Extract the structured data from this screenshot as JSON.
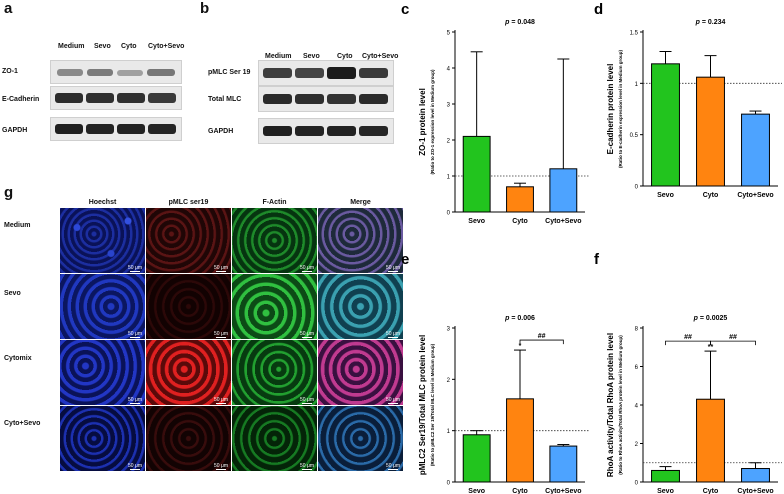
{
  "panels": {
    "a": {
      "letter": "a",
      "columns": [
        "Medium",
        "Sevo",
        "Cyto",
        "Cyto+Sevo"
      ],
      "rows": [
        "ZO-1",
        "E-Cadherin",
        "GAPDH"
      ]
    },
    "b": {
      "letter": "b",
      "columns": [
        "Medium",
        "Sevo",
        "Cyto",
        "Cyto+Sevo"
      ],
      "rows": [
        "pMLC Ser 19",
        "Total MLC",
        "GAPDH"
      ]
    },
    "g": {
      "letter": "g",
      "columns": [
        "Hoechst",
        "pMLC ser19",
        "F-Actin",
        "Merge"
      ],
      "rows": [
        "Medium",
        "Sevo",
        "Cytomix",
        "Cyto+Sevo"
      ],
      "scale_bar": "50 μm"
    }
  },
  "colors": {
    "sevo": "#22c41e",
    "cyto": "#ff8410",
    "cyto_sevo": "#4da3ff"
  },
  "chart_data": [
    {
      "id": "c",
      "letter": "c",
      "type": "bar",
      "categories": [
        "Sevo",
        "Cyto",
        "Cyto+Sevo"
      ],
      "values": [
        2.1,
        0.7,
        1.2
      ],
      "errors": [
        2.35,
        0.1,
        3.05
      ],
      "ylim": [
        0,
        5
      ],
      "yticks": [
        0,
        1,
        2,
        3,
        4,
        5
      ],
      "ytick_labels": [
        "0",
        "1",
        "2",
        "3",
        "4",
        "5"
      ],
      "ylabel": "ZO-1 protein level",
      "ylabel_sub": "(Ratio to ZO-1 expression level in Medium group)",
      "pvalue": "p = 0.048",
      "reference": 1,
      "annotations": [],
      "brackets": []
    },
    {
      "id": "d",
      "letter": "d",
      "type": "bar",
      "categories": [
        "Sevo",
        "Cyto",
        "Cyto+Sevo"
      ],
      "values": [
        1.19,
        1.06,
        0.7
      ],
      "errors": [
        0.12,
        0.21,
        0.03
      ],
      "ylim": [
        0,
        1.5
      ],
      "yticks": [
        0,
        0.5,
        1,
        1.5
      ],
      "ytick_labels": [
        "0",
        "0.5",
        "1",
        "1.5"
      ],
      "ylabel": "E-cadherin protein level",
      "ylabel_sub": "(Ratio to E-cadherin expression level in Medium group)",
      "pvalue": "p = 0.234",
      "reference": 1,
      "annotations": [],
      "brackets": []
    },
    {
      "id": "e",
      "letter": "e",
      "type": "bar",
      "categories": [
        "Sevo",
        "Cyto",
        "Cyto+Sevo"
      ],
      "values": [
        0.92,
        1.62,
        0.7
      ],
      "errors": [
        0.08,
        0.95,
        0.03
      ],
      "ylim": [
        0,
        3
      ],
      "yticks": [
        0,
        1,
        2,
        3
      ],
      "ytick_labels": [
        "0",
        "1",
        "2",
        "3"
      ],
      "ylabel": "pMLC2 Ser19/Total MLC protein level",
      "ylabel_sub": "(Ratio to pMLC2 Ser 19/Total MLC level in Medium group)",
      "pvalue": "p = 0.006",
      "reference": 1,
      "annotations": [
        {
          "bar": 1,
          "text": "*"
        }
      ],
      "brackets": [
        {
          "from": 1,
          "to": 2,
          "text": "##"
        }
      ]
    },
    {
      "id": "f",
      "letter": "f",
      "type": "bar",
      "categories": [
        "Sevo",
        "Cyto",
        "Cyto+Sevo"
      ],
      "values": [
        0.6,
        4.3,
        0.7
      ],
      "errors": [
        0.2,
        2.5,
        0.3
      ],
      "ylim": [
        0,
        8
      ],
      "yticks": [
        0,
        2,
        4,
        6,
        8
      ],
      "ytick_labels": [
        "0",
        "2",
        "4",
        "6",
        "8"
      ],
      "ylabel": "RhoA activity/Total RhoA protein level",
      "ylabel_sub": "(Ratio to RhoA activity/Total RhoA protein level in Medium group)",
      "pvalue": "p = 0.0025",
      "reference": 1,
      "annotations": [
        {
          "bar": 1,
          "text": "**"
        }
      ],
      "brackets": [
        {
          "from": 0,
          "to": 1,
          "text": "##"
        },
        {
          "from": 1,
          "to": 2,
          "text": "##"
        }
      ]
    }
  ]
}
